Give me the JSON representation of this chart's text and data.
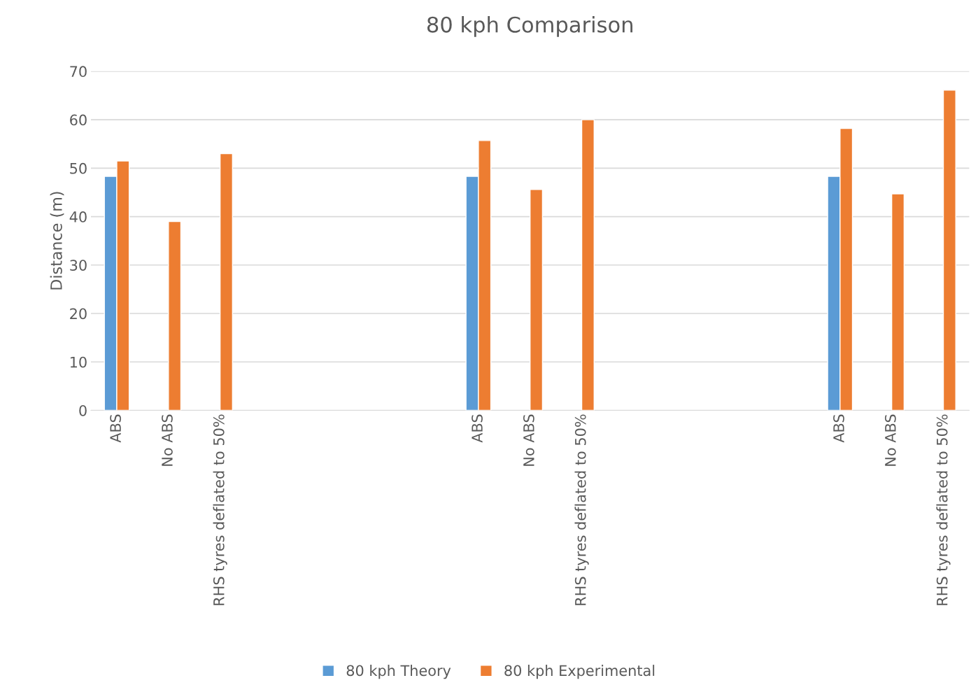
{
  "chart_data": {
    "type": "bar",
    "title": "80 kph Comparison",
    "ylabel": "Distance (m)",
    "categories": [
      "ABS",
      "No ABS",
      "RHS tyres deflated to 50%",
      null,
      null,
      null,
      null,
      "ABS",
      "No ABS",
      "RHS tyres deflated to 50%",
      null,
      null,
      null,
      null,
      "ABS",
      "No ABS",
      "RHS tyres deflated to 50%"
    ],
    "series": [
      {
        "name": "80 kph Theory",
        "color": "#5b9bd5",
        "values": [
          48.3,
          null,
          null,
          null,
          null,
          null,
          null,
          48.3,
          null,
          null,
          null,
          null,
          null,
          null,
          48.3,
          null,
          null
        ]
      },
      {
        "name": "80 kph Experimental",
        "color": "#ed7d31",
        "values": [
          51.5,
          39.0,
          53.0,
          null,
          null,
          null,
          null,
          55.7,
          45.6,
          60.0,
          null,
          null,
          null,
          null,
          58.2,
          44.7,
          66.1
        ]
      }
    ],
    "ylim": [
      0,
      70
    ],
    "yticks": [
      0,
      10,
      20,
      30,
      40,
      50,
      60,
      70
    ],
    "grid": "y",
    "legend": "bottom"
  }
}
